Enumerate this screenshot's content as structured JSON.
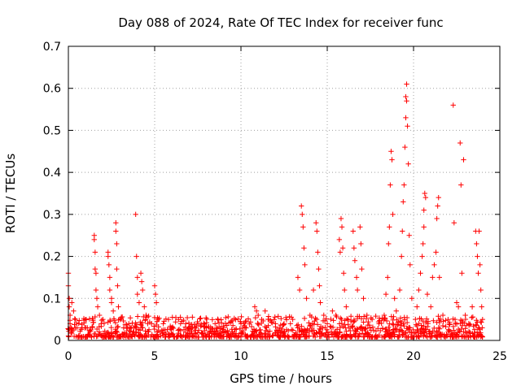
{
  "chart_data": {
    "type": "scatter",
    "title": "Day 088 of 2024, Rate Of TEC Index for receiver func",
    "xlabel": "GPS time / hours",
    "ylabel": "ROTI / TECUs",
    "xlim": [
      0,
      25
    ],
    "ylim": [
      0,
      0.7
    ],
    "xticks": [
      0,
      5,
      10,
      15,
      20,
      25
    ],
    "yticks": [
      0,
      0.1,
      0.2,
      0.3,
      0.4,
      0.5,
      0.6,
      0.7
    ],
    "xtick_labels": [
      "0",
      "5",
      "10",
      "15",
      "20",
      "25"
    ],
    "ytick_labels": [
      "0",
      "0.1",
      "0.2",
      "0.3",
      "0.4",
      "0.5",
      "0.6",
      "0.7"
    ],
    "grid": true,
    "marker": "+",
    "color": "#ff0000",
    "series": [
      {
        "name": "ROTI",
        "points": [
          [
            0.0,
            0.16
          ],
          [
            0.0,
            0.13
          ],
          [
            0.05,
            0.1
          ],
          [
            0.05,
            0.08
          ],
          [
            0.1,
            0.06
          ],
          [
            0.1,
            0.04
          ],
          [
            0.15,
            0.03
          ],
          [
            0.2,
            0.09
          ],
          [
            0.3,
            0.07
          ],
          [
            0.4,
            0.05
          ],
          [
            0.5,
            0.03
          ],
          [
            0.6,
            0.04
          ],
          [
            0.8,
            0.03
          ],
          [
            1.0,
            0.05
          ],
          [
            1.1,
            0.03
          ],
          [
            1.5,
            0.25
          ],
          [
            1.5,
            0.24
          ],
          [
            1.55,
            0.21
          ],
          [
            1.55,
            0.17
          ],
          [
            1.6,
            0.16
          ],
          [
            1.6,
            0.12
          ],
          [
            1.65,
            0.1
          ],
          [
            1.7,
            0.08
          ],
          [
            1.8,
            0.06
          ],
          [
            1.9,
            0.04
          ],
          [
            2.0,
            0.05
          ],
          [
            2.3,
            0.21
          ],
          [
            2.3,
            0.2
          ],
          [
            2.35,
            0.18
          ],
          [
            2.4,
            0.15
          ],
          [
            2.4,
            0.12
          ],
          [
            2.5,
            0.1
          ],
          [
            2.5,
            0.09
          ],
          [
            2.6,
            0.07
          ],
          [
            2.75,
            0.28
          ],
          [
            2.75,
            0.26
          ],
          [
            2.8,
            0.23
          ],
          [
            2.8,
            0.17
          ],
          [
            2.85,
            0.13
          ],
          [
            2.9,
            0.08
          ],
          [
            3.0,
            0.05
          ],
          [
            3.2,
            0.03
          ],
          [
            3.5,
            0.04
          ],
          [
            3.8,
            0.03
          ],
          [
            3.9,
            0.3
          ],
          [
            3.95,
            0.2
          ],
          [
            4.0,
            0.15
          ],
          [
            4.0,
            0.11
          ],
          [
            4.1,
            0.09
          ],
          [
            4.2,
            0.16
          ],
          [
            4.25,
            0.14
          ],
          [
            4.3,
            0.12
          ],
          [
            4.4,
            0.08
          ],
          [
            4.5,
            0.06
          ],
          [
            4.6,
            0.04
          ],
          [
            5.0,
            0.13
          ],
          [
            5.05,
            0.11
          ],
          [
            5.1,
            0.09
          ],
          [
            5.2,
            0.05
          ],
          [
            5.5,
            0.04
          ],
          [
            5.8,
            0.05
          ],
          [
            6.0,
            0.03
          ],
          [
            6.5,
            0.04
          ],
          [
            6.8,
            0.04
          ],
          [
            7.0,
            0.03
          ],
          [
            7.5,
            0.04
          ],
          [
            8.0,
            0.03
          ],
          [
            8.5,
            0.04
          ],
          [
            9.0,
            0.03
          ],
          [
            9.5,
            0.02
          ],
          [
            10.0,
            0.04
          ],
          [
            10.3,
            0.03
          ],
          [
            10.8,
            0.08
          ],
          [
            10.9,
            0.07
          ],
          [
            11.0,
            0.06
          ],
          [
            11.2,
            0.05
          ],
          [
            11.4,
            0.07
          ],
          [
            11.6,
            0.05
          ],
          [
            12.0,
            0.04
          ],
          [
            12.5,
            0.04
          ],
          [
            13.0,
            0.05
          ],
          [
            13.3,
            0.15
          ],
          [
            13.4,
            0.12
          ],
          [
            13.5,
            0.32
          ],
          [
            13.55,
            0.3
          ],
          [
            13.6,
            0.27
          ],
          [
            13.65,
            0.22
          ],
          [
            13.7,
            0.18
          ],
          [
            13.8,
            0.1
          ],
          [
            14.0,
            0.06
          ],
          [
            14.2,
            0.12
          ],
          [
            14.35,
            0.28
          ],
          [
            14.4,
            0.26
          ],
          [
            14.45,
            0.21
          ],
          [
            14.5,
            0.17
          ],
          [
            14.55,
            0.13
          ],
          [
            14.6,
            0.09
          ],
          [
            14.8,
            0.06
          ],
          [
            15.0,
            0.04
          ],
          [
            15.3,
            0.07
          ],
          [
            15.5,
            0.06
          ],
          [
            15.7,
            0.24
          ],
          [
            15.75,
            0.21
          ],
          [
            15.8,
            0.29
          ],
          [
            15.85,
            0.27
          ],
          [
            15.9,
            0.22
          ],
          [
            15.95,
            0.16
          ],
          [
            16.0,
            0.12
          ],
          [
            16.1,
            0.08
          ],
          [
            16.5,
            0.26
          ],
          [
            16.55,
            0.22
          ],
          [
            16.6,
            0.19
          ],
          [
            16.7,
            0.15
          ],
          [
            16.75,
            0.12
          ],
          [
            16.9,
            0.27
          ],
          [
            16.95,
            0.23
          ],
          [
            17.0,
            0.17
          ],
          [
            17.1,
            0.1
          ],
          [
            17.3,
            0.06
          ],
          [
            17.6,
            0.05
          ],
          [
            18.0,
            0.04
          ],
          [
            18.3,
            0.06
          ],
          [
            18.4,
            0.11
          ],
          [
            18.5,
            0.15
          ],
          [
            18.55,
            0.23
          ],
          [
            18.6,
            0.27
          ],
          [
            18.65,
            0.37
          ],
          [
            18.7,
            0.45
          ],
          [
            18.75,
            0.43
          ],
          [
            18.8,
            0.3
          ],
          [
            18.9,
            0.1
          ],
          [
            19.0,
            0.07
          ],
          [
            19.2,
            0.12
          ],
          [
            19.3,
            0.2
          ],
          [
            19.35,
            0.26
          ],
          [
            19.4,
            0.33
          ],
          [
            19.45,
            0.37
          ],
          [
            19.5,
            0.46
          ],
          [
            19.55,
            0.53
          ],
          [
            19.55,
            0.58
          ],
          [
            19.6,
            0.61
          ],
          [
            19.6,
            0.57
          ],
          [
            19.65,
            0.51
          ],
          [
            19.7,
            0.42
          ],
          [
            19.75,
            0.25
          ],
          [
            19.8,
            0.18
          ],
          [
            19.9,
            0.1
          ],
          [
            20.2,
            0.08
          ],
          [
            20.3,
            0.12
          ],
          [
            20.4,
            0.16
          ],
          [
            20.5,
            0.2
          ],
          [
            20.55,
            0.23
          ],
          [
            20.6,
            0.27
          ],
          [
            20.6,
            0.31
          ],
          [
            20.65,
            0.35
          ],
          [
            20.7,
            0.34
          ],
          [
            20.8,
            0.11
          ],
          [
            21.0,
            0.08
          ],
          [
            21.1,
            0.15
          ],
          [
            21.2,
            0.18
          ],
          [
            21.3,
            0.21
          ],
          [
            21.35,
            0.29
          ],
          [
            21.4,
            0.32
          ],
          [
            21.45,
            0.34
          ],
          [
            21.5,
            0.15
          ],
          [
            21.7,
            0.06
          ],
          [
            22.0,
            0.05
          ],
          [
            22.3,
            0.56
          ],
          [
            22.35,
            0.28
          ],
          [
            22.5,
            0.09
          ],
          [
            22.6,
            0.08
          ],
          [
            22.7,
            0.47
          ],
          [
            22.75,
            0.37
          ],
          [
            22.8,
            0.16
          ],
          [
            22.9,
            0.43
          ],
          [
            23.0,
            0.06
          ],
          [
            23.2,
            0.04
          ],
          [
            23.4,
            0.08
          ],
          [
            23.6,
            0.26
          ],
          [
            23.65,
            0.23
          ],
          [
            23.7,
            0.2
          ],
          [
            23.75,
            0.16
          ],
          [
            23.8,
            0.26
          ],
          [
            23.85,
            0.18
          ],
          [
            23.9,
            0.12
          ],
          [
            23.95,
            0.08
          ],
          [
            24.0,
            0.05
          ]
        ]
      }
    ]
  }
}
